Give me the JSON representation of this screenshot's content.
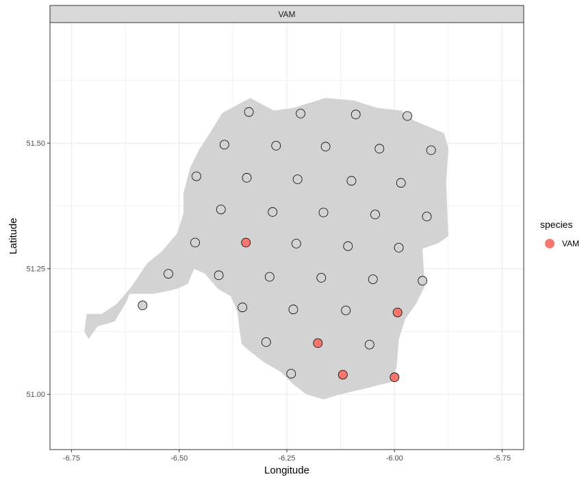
{
  "chart_data": {
    "type": "scatter",
    "facet_label": "VAM",
    "xlabel": "Longitude",
    "ylabel": "Latitude",
    "xlim": [
      -6.8,
      -5.7
    ],
    "ylim": [
      50.89,
      51.74
    ],
    "x_ticks": [
      -6.75,
      -6.5,
      -6.25,
      -6.0,
      -5.75
    ],
    "x_tick_labels": [
      "-6.75",
      "-6.50",
      "-6.25",
      "-6.00",
      "-5.75"
    ],
    "y_ticks": [
      51.0,
      51.25,
      51.5
    ],
    "y_tick_labels": [
      "51.00",
      "51.25",
      "51.50"
    ],
    "grid": true,
    "legend_position": "right",
    "legend": {
      "title": "species",
      "entries": [
        {
          "label": "VAM",
          "color": "#F8766D"
        }
      ]
    },
    "colors": {
      "present": "#F8766D",
      "absent_fill": "#D3D3D3",
      "region_fill": "#D3D3D3",
      "strip_fill": "#D9D9D9",
      "grid": "#EBEBEB"
    },
    "region_outline": [
      [
        -6.715,
        51.16
      ],
      [
        -6.68,
        51.16
      ],
      [
        -6.645,
        51.18
      ],
      [
        -6.61,
        51.215
      ],
      [
        -6.575,
        51.26
      ],
      [
        -6.54,
        51.285
      ],
      [
        -6.505,
        51.32
      ],
      [
        -6.49,
        51.36
      ],
      [
        -6.49,
        51.4
      ],
      [
        -6.475,
        51.45
      ],
      [
        -6.455,
        51.485
      ],
      [
        -6.425,
        51.525
      ],
      [
        -6.4,
        51.56
      ],
      [
        -6.335,
        51.59
      ],
      [
        -6.28,
        51.565
      ],
      [
        -6.235,
        51.57
      ],
      [
        -6.16,
        51.59
      ],
      [
        -6.095,
        51.585
      ],
      [
        -6.04,
        51.57
      ],
      [
        -5.985,
        51.565
      ],
      [
        -5.955,
        51.545
      ],
      [
        -5.885,
        51.52
      ],
      [
        -5.875,
        51.49
      ],
      [
        -5.88,
        51.42
      ],
      [
        -5.875,
        51.315
      ],
      [
        -5.9,
        51.3
      ],
      [
        -5.935,
        51.29
      ],
      [
        -5.93,
        51.215
      ],
      [
        -5.95,
        51.18
      ],
      [
        -5.975,
        51.15
      ],
      [
        -5.99,
        51.11
      ],
      [
        -5.995,
        51.055
      ],
      [
        -6.005,
        51.025
      ],
      [
        -6.075,
        51.01
      ],
      [
        -6.125,
        51.0
      ],
      [
        -6.165,
        50.99
      ],
      [
        -6.205,
        51.0
      ],
      [
        -6.235,
        51.02
      ],
      [
        -6.265,
        51.045
      ],
      [
        -6.305,
        51.065
      ],
      [
        -6.335,
        51.085
      ],
      [
        -6.355,
        51.1
      ],
      [
        -6.36,
        51.13
      ],
      [
        -6.365,
        51.165
      ],
      [
        -6.38,
        51.195
      ],
      [
        -6.41,
        51.21
      ],
      [
        -6.44,
        51.24
      ],
      [
        -6.465,
        51.25
      ],
      [
        -6.48,
        51.22
      ],
      [
        -6.505,
        51.21
      ],
      [
        -6.53,
        51.205
      ],
      [
        -6.56,
        51.2
      ],
      [
        -6.615,
        51.2
      ],
      [
        -6.625,
        51.18
      ],
      [
        -6.65,
        51.145
      ],
      [
        -6.69,
        51.135
      ],
      [
        -6.71,
        51.11
      ],
      [
        -6.72,
        51.125
      ]
    ],
    "points": [
      {
        "x": -6.338,
        "y": 51.562,
        "present": false
      },
      {
        "x": -6.218,
        "y": 51.559,
        "present": false
      },
      {
        "x": -6.09,
        "y": 51.557,
        "present": false
      },
      {
        "x": -5.97,
        "y": 51.554,
        "present": false
      },
      {
        "x": -6.395,
        "y": 51.497,
        "present": false
      },
      {
        "x": -6.275,
        "y": 51.495,
        "present": false
      },
      {
        "x": -6.16,
        "y": 51.493,
        "present": false
      },
      {
        "x": -6.035,
        "y": 51.489,
        "present": false
      },
      {
        "x": -5.915,
        "y": 51.486,
        "present": false
      },
      {
        "x": -6.46,
        "y": 51.434,
        "present": false
      },
      {
        "x": -6.343,
        "y": 51.431,
        "present": false
      },
      {
        "x": -6.225,
        "y": 51.428,
        "present": false
      },
      {
        "x": -6.1,
        "y": 51.425,
        "present": false
      },
      {
        "x": -5.985,
        "y": 51.421,
        "present": false
      },
      {
        "x": -6.403,
        "y": 51.368,
        "present": false
      },
      {
        "x": -6.283,
        "y": 51.363,
        "present": false
      },
      {
        "x": -6.165,
        "y": 51.362,
        "present": false
      },
      {
        "x": -6.045,
        "y": 51.358,
        "present": false
      },
      {
        "x": -5.925,
        "y": 51.354,
        "present": false
      },
      {
        "x": -6.463,
        "y": 51.302,
        "present": false
      },
      {
        "x": -6.345,
        "y": 51.302,
        "present": true
      },
      {
        "x": -6.228,
        "y": 51.3,
        "present": false
      },
      {
        "x": -6.108,
        "y": 51.295,
        "present": false
      },
      {
        "x": -5.99,
        "y": 51.292,
        "present": false
      },
      {
        "x": -6.525,
        "y": 51.24,
        "present": false
      },
      {
        "x": -6.408,
        "y": 51.237,
        "present": false
      },
      {
        "x": -6.29,
        "y": 51.234,
        "present": false
      },
      {
        "x": -6.17,
        "y": 51.232,
        "present": false
      },
      {
        "x": -6.05,
        "y": 51.229,
        "present": false
      },
      {
        "x": -5.935,
        "y": 51.226,
        "present": false
      },
      {
        "x": -6.585,
        "y": 51.177,
        "present": false
      },
      {
        "x": -6.353,
        "y": 51.173,
        "present": false
      },
      {
        "x": -6.235,
        "y": 51.169,
        "present": false
      },
      {
        "x": -6.113,
        "y": 51.167,
        "present": false
      },
      {
        "x": -5.993,
        "y": 51.163,
        "present": true
      },
      {
        "x": -6.298,
        "y": 51.104,
        "present": false
      },
      {
        "x": -6.178,
        "y": 51.102,
        "present": true
      },
      {
        "x": -6.058,
        "y": 51.099,
        "present": false
      },
      {
        "x": -6.24,
        "y": 51.041,
        "present": false
      },
      {
        "x": -6.12,
        "y": 51.039,
        "present": true
      },
      {
        "x": -6.0,
        "y": 51.034,
        "present": true
      }
    ]
  }
}
